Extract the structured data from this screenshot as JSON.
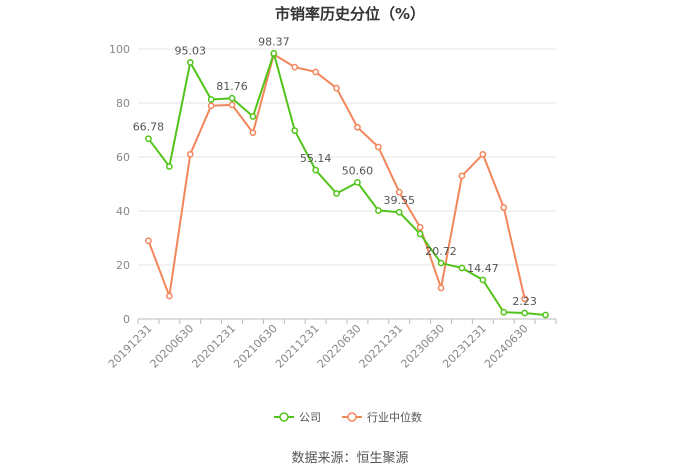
{
  "chart_data": {
    "type": "line",
    "title": "市销率历史分位（%）",
    "source": "数据来源：恒生聚源",
    "xlabel": "",
    "ylabel": "",
    "ylim": [
      0,
      100
    ],
    "yticks": [
      0,
      20,
      40,
      60,
      80,
      100
    ],
    "grid": true,
    "legend_position": "bottom",
    "x_tick_labels": [
      "20191231",
      "20200630",
      "20201231",
      "20210630",
      "20211231",
      "20220630",
      "20221231",
      "20230630",
      "20231231",
      "20240630"
    ],
    "x": [
      "20191231",
      "20200331",
      "20200630",
      "20200930",
      "20201231",
      "20210331",
      "20210630",
      "20210930",
      "20211231",
      "20220331",
      "20220630",
      "20220930",
      "20221231",
      "20230331",
      "20230630",
      "20230930",
      "20231231",
      "20240331",
      "20240630",
      "20240930"
    ],
    "series": [
      {
        "name": "公司",
        "color": "#52c41a",
        "values": [
          66.78,
          56.5,
          95.03,
          81.3,
          81.76,
          75.0,
          98.37,
          69.8,
          55.14,
          46.5,
          50.6,
          40.2,
          39.55,
          31.5,
          20.72,
          18.9,
          14.47,
          2.5,
          2.23,
          1.5
        ],
        "data_labels": [
          {
            "index": 0,
            "text": "66.78"
          },
          {
            "index": 2,
            "text": "95.03"
          },
          {
            "index": 4,
            "text": "81.76"
          },
          {
            "index": 6,
            "text": "98.37"
          },
          {
            "index": 8,
            "text": "55.14"
          },
          {
            "index": 10,
            "text": "50.60"
          },
          {
            "index": 12,
            "text": "39.55"
          },
          {
            "index": 14,
            "text": "20.72"
          },
          {
            "index": 16,
            "text": "14.47"
          },
          {
            "index": 18,
            "text": "2.23"
          }
        ]
      },
      {
        "name": "行业中位数",
        "color": "#f4865c",
        "values": [
          29.0,
          8.5,
          61.0,
          79.0,
          79.3,
          69.0,
          98.0,
          93.3,
          91.5,
          85.5,
          71.0,
          63.7,
          47.0,
          34.0,
          11.5,
          53.0,
          61.0,
          41.3,
          7.5,
          null
        ]
      }
    ]
  }
}
